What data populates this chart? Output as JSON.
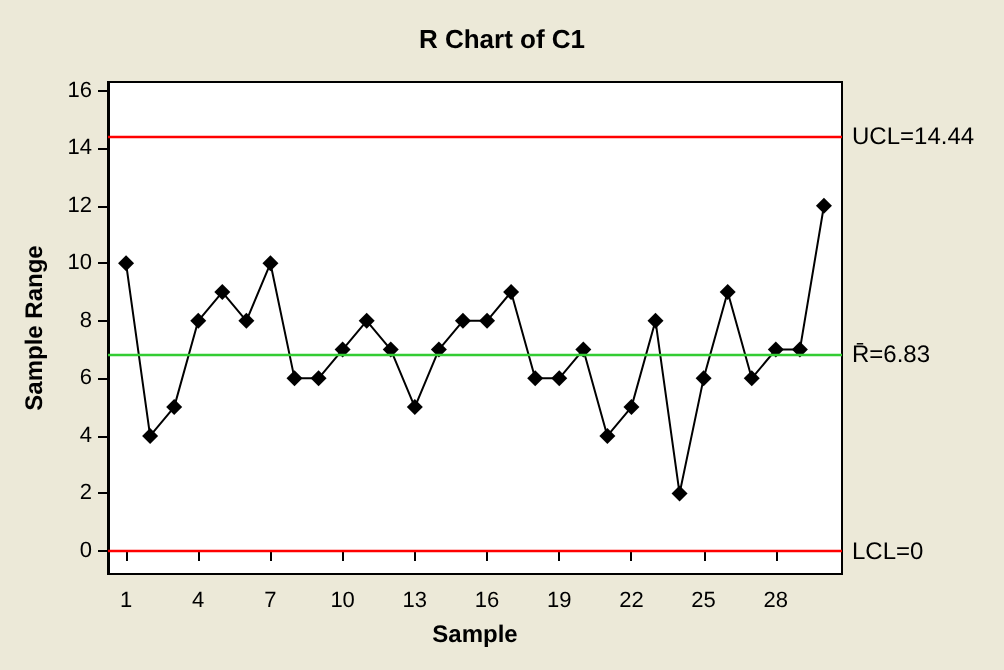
{
  "chart_data": {
    "type": "line",
    "title": "R Chart of C1",
    "xlabel": "Sample",
    "ylabel": "Sample Range",
    "x": [
      1,
      2,
      3,
      4,
      5,
      6,
      7,
      8,
      9,
      10,
      11,
      12,
      13,
      14,
      15,
      16,
      17,
      18,
      19,
      20,
      21,
      22,
      23,
      24,
      25,
      26,
      27,
      28,
      29,
      30
    ],
    "series": [
      {
        "color": "#000000",
        "values": [
          10,
          4,
          5,
          8,
          9,
          8,
          10,
          6,
          6,
          7,
          8,
          7,
          5,
          7,
          8,
          8,
          9,
          6,
          6,
          7,
          4,
          5,
          8,
          2,
          6,
          9,
          6,
          7,
          7,
          12
        ]
      }
    ],
    "xlim": [
      0.25,
      30.75
    ],
    "xticks": [
      1,
      4,
      7,
      10,
      13,
      16,
      19,
      22,
      25,
      28
    ],
    "ylim": [
      -0.8,
      16.3
    ],
    "yticks": [
      0,
      2,
      4,
      6,
      8,
      10,
      12,
      14,
      16
    ],
    "ref_lines": [
      {
        "axis": "y",
        "value": 14.44,
        "label": "UCL=14.44",
        "color": "#ff0000"
      },
      {
        "axis": "y",
        "value": 6.83,
        "label": "R̄=6.83",
        "color": "#33cc33"
      },
      {
        "axis": "y",
        "value": 0,
        "label": "LCL=0",
        "color": "#ff0000"
      }
    ],
    "grid": false,
    "marker": "diamond",
    "line_style": "solid"
  }
}
